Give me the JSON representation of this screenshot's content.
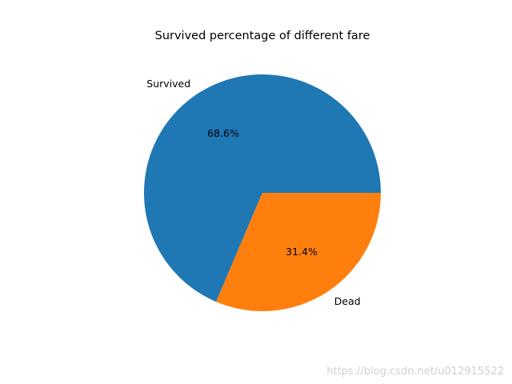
{
  "chart_data": {
    "type": "pie",
    "title": "Survived percentage of different fare",
    "slices": [
      {
        "label": "Survived",
        "value": 68.6,
        "pct_label": "68.6%",
        "color": "#1f77b4"
      },
      {
        "label": "Dead",
        "value": 31.4,
        "pct_label": "31.4%",
        "color": "#ff7f0e"
      }
    ],
    "start_angle_deg": 0,
    "direction": "counterclockwise"
  },
  "watermark": "https://blog.csdn.net/u012915522"
}
